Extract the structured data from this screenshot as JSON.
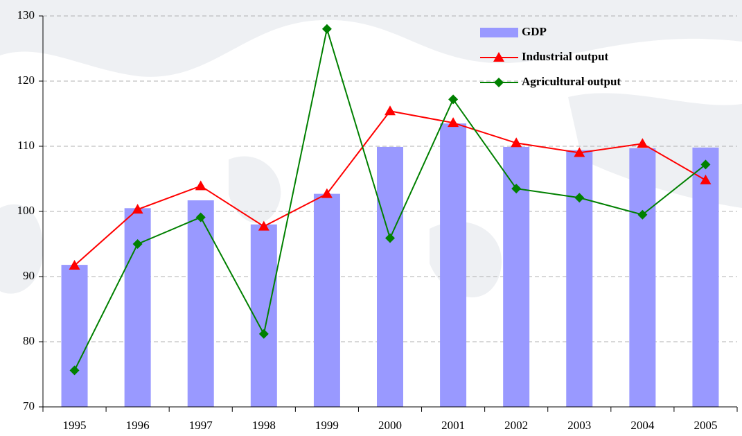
{
  "chart_data": {
    "type": "bar",
    "categories": [
      "1995",
      "1996",
      "1997",
      "1998",
      "1999",
      "2000",
      "2001",
      "2002",
      "2003",
      "2004",
      "2005"
    ],
    "series": [
      {
        "name": "GDP",
        "type": "bar",
        "color": "#9999ff",
        "values": [
          91.8,
          100.5,
          101.7,
          98.0,
          102.7,
          109.9,
          113.5,
          109.9,
          109.4,
          109.7,
          109.8
        ]
      },
      {
        "name": "Industrial output",
        "type": "line",
        "marker": "triangle",
        "color": "#ff0000",
        "values": [
          91.7,
          100.3,
          103.9,
          97.7,
          102.7,
          115.4,
          113.6,
          110.5,
          109.0,
          110.4,
          104.8
        ]
      },
      {
        "name": "Agricultural output",
        "type": "line",
        "marker": "diamond",
        "color": "#008000",
        "values": [
          75.6,
          95.0,
          99.1,
          81.2,
          128.0,
          95.9,
          117.2,
          103.5,
          102.1,
          99.5,
          107.2
        ]
      }
    ],
    "ylim": [
      70,
      130
    ],
    "yticks": [
      70,
      80,
      90,
      100,
      110,
      120,
      130
    ],
    "grid": true,
    "legend": "top-right"
  }
}
